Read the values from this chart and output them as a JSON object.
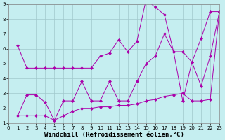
{
  "xlabel": "Windchill (Refroidissement éolien,°C)",
  "xlim": [
    0,
    23
  ],
  "ylim": [
    1,
    9
  ],
  "xticks": [
    0,
    1,
    2,
    3,
    4,
    5,
    6,
    7,
    8,
    9,
    10,
    11,
    12,
    13,
    14,
    15,
    16,
    17,
    18,
    19,
    20,
    21,
    22,
    23
  ],
  "yticks": [
    1,
    2,
    3,
    4,
    5,
    6,
    7,
    8,
    9
  ],
  "bg_color": "#c5eef0",
  "grid_color": "#a0c8cc",
  "line_color": "#aa00aa",
  "line1_x": [
    1,
    2,
    3,
    4,
    5,
    6,
    7,
    8,
    9,
    10,
    11,
    12,
    13,
    14,
    15,
    16,
    17,
    18,
    19,
    20,
    21,
    22,
    23
  ],
  "line1_y": [
    6.2,
    4.7,
    4.7,
    4.7,
    4.7,
    4.7,
    4.7,
    4.7,
    4.7,
    5.5,
    5.7,
    6.6,
    5.8,
    6.5,
    9.3,
    8.8,
    8.3,
    5.8,
    5.8,
    5.1,
    6.7,
    8.5,
    8.5
  ],
  "line2_x": [
    1,
    2,
    3,
    4,
    5,
    6,
    7,
    8,
    9,
    10,
    11,
    12,
    13,
    14,
    15,
    16,
    17,
    18,
    19,
    20,
    21,
    22,
    23
  ],
  "line2_y": [
    1.5,
    2.9,
    2.9,
    2.4,
    1.2,
    2.5,
    2.5,
    3.8,
    2.5,
    2.5,
    3.8,
    2.5,
    2.5,
    3.8,
    5.0,
    5.5,
    7.0,
    5.8,
    2.5,
    5.1,
    3.5,
    5.5,
    8.5
  ],
  "line3_x": [
    1,
    2,
    3,
    4,
    5,
    6,
    7,
    8,
    9,
    10,
    11,
    12,
    13,
    14,
    15,
    16,
    17,
    18,
    19,
    20,
    21,
    22,
    23
  ],
  "line3_y": [
    1.5,
    1.5,
    1.5,
    1.5,
    1.2,
    1.5,
    1.8,
    2.0,
    2.0,
    2.1,
    2.1,
    2.2,
    2.2,
    2.3,
    2.5,
    2.6,
    2.8,
    2.9,
    3.0,
    2.5,
    2.5,
    2.6,
    8.5
  ],
  "fontsize_tick": 5,
  "fontsize_xlabel": 6.5
}
